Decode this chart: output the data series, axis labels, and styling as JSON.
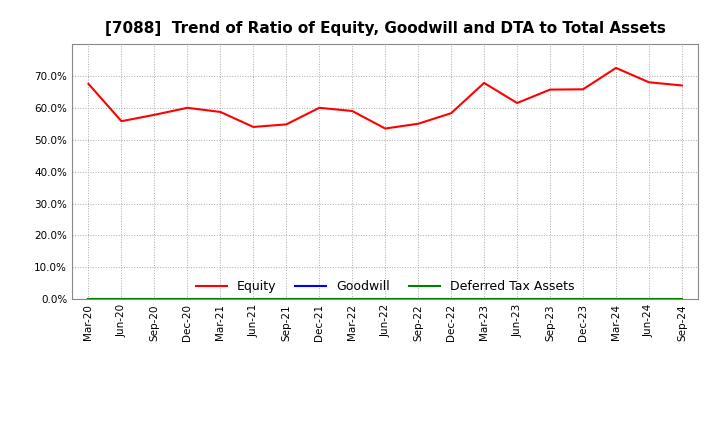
{
  "title": "[7088]  Trend of Ratio of Equity, Goodwill and DTA to Total Assets",
  "x_labels": [
    "Mar-20",
    "Jun-20",
    "Sep-20",
    "Dec-20",
    "Mar-21",
    "Jun-21",
    "Sep-21",
    "Dec-21",
    "Mar-22",
    "Jun-22",
    "Sep-22",
    "Dec-22",
    "Mar-23",
    "Jun-23",
    "Sep-23",
    "Dec-23",
    "Mar-24",
    "Jun-24",
    "Sep-24"
  ],
  "equity": [
    0.675,
    0.558,
    0.578,
    0.6,
    0.587,
    0.54,
    0.548,
    0.6,
    0.59,
    0.535,
    0.55,
    0.583,
    0.678,
    0.615,
    0.657,
    0.658,
    0.725,
    0.68,
    0.67
  ],
  "goodwill": [
    0.0,
    0.0,
    0.0,
    0.0,
    0.0,
    0.0,
    0.0,
    0.0,
    0.0,
    0.0,
    0.0,
    0.0,
    0.0,
    0.0,
    0.0,
    0.0,
    0.0,
    0.0,
    0.0
  ],
  "dta": [
    0.0,
    0.0,
    0.0,
    0.0,
    0.0,
    0.0,
    0.0,
    0.0,
    0.0,
    0.0,
    0.0,
    0.0,
    0.0,
    0.0,
    0.0,
    0.0,
    0.0,
    0.0,
    0.0
  ],
  "equity_color": "#FF0000",
  "goodwill_color": "#0000FF",
  "dta_color": "#008000",
  "ylim": [
    0.0,
    0.8
  ],
  "yticks": [
    0.0,
    0.1,
    0.2,
    0.3,
    0.4,
    0.5,
    0.6,
    0.7
  ],
  "background_color": "#FFFFFF",
  "plot_bg_color": "#FFFFFF",
  "grid_color": "#AAAAAA",
  "title_fontsize": 11,
  "tick_fontsize": 7.5,
  "legend_labels": [
    "Equity",
    "Goodwill",
    "Deferred Tax Assets"
  ]
}
